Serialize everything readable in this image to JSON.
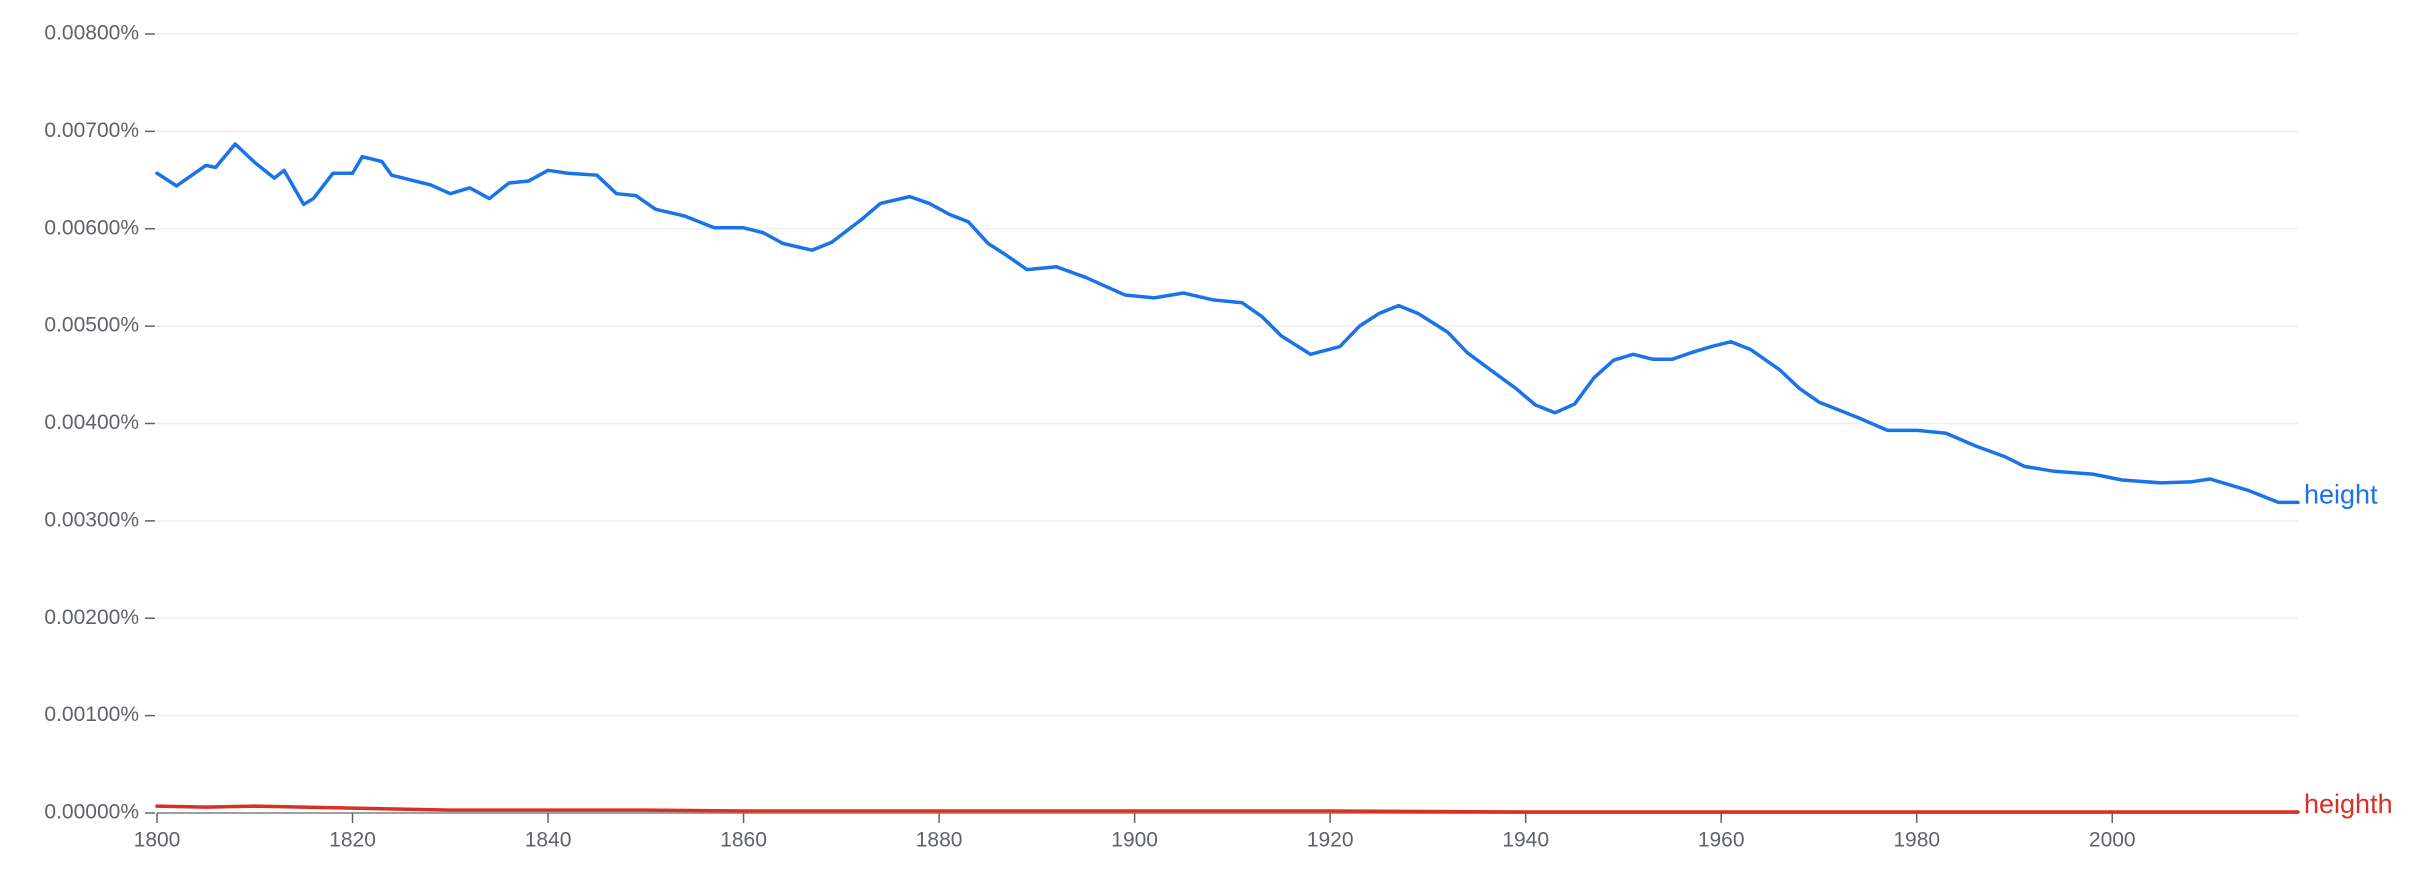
{
  "chart_data": {
    "type": "line",
    "xlim": [
      1800,
      2019
    ],
    "xticks": [
      1800,
      1820,
      1840,
      1860,
      1880,
      1900,
      1920,
      1940,
      1960,
      1980,
      2000
    ],
    "ylim": [
      0,
      0.008
    ],
    "yticks": [
      {
        "value": 0,
        "label": "0.00000%"
      },
      {
        "value": 0.001,
        "label": "0.00100%"
      },
      {
        "value": 0.002,
        "label": "0.00200%"
      },
      {
        "value": 0.003,
        "label": "0.00300%"
      },
      {
        "value": 0.004,
        "label": "0.00400%"
      },
      {
        "value": 0.005,
        "label": "0.00500%"
      },
      {
        "value": 0.006,
        "label": "0.00600%"
      },
      {
        "value": 0.007,
        "label": "0.00700%"
      },
      {
        "value": 0.008,
        "label": "0.00800%"
      }
    ],
    "grid": true,
    "series": [
      {
        "name": "height",
        "color": "#1a73e8",
        "x": [
          1800,
          1802,
          1805,
          1806,
          1808,
          1810,
          1812,
          1813,
          1815,
          1816,
          1818,
          1820,
          1821,
          1823,
          1824,
          1828,
          1830,
          1832,
          1834,
          1836,
          1838,
          1840,
          1842,
          1845,
          1847,
          1849,
          1851,
          1854,
          1857,
          1860,
          1862,
          1864,
          1867,
          1869,
          1872,
          1874,
          1877,
          1879,
          1881,
          1883,
          1885,
          1887,
          1889,
          1892,
          1895,
          1899,
          1902,
          1905,
          1908,
          1911,
          1913,
          1915,
          1918,
          1921,
          1923,
          1925,
          1927,
          1929,
          1932,
          1934,
          1936,
          1939,
          1941,
          1943,
          1945,
          1947,
          1949,
          1951,
          1953,
          1955,
          1957,
          1959,
          1961,
          1963,
          1966,
          1968,
          1970,
          1974,
          1977,
          1980,
          1983,
          1986,
          1989,
          1991,
          1994,
          1998,
          2001,
          2005,
          2008,
          2010,
          2012,
          2014,
          2017,
          2019
        ],
        "values": [
          0.00657,
          0.00644,
          0.00665,
          0.00663,
          0.00687,
          0.00668,
          0.00652,
          0.0066,
          0.00625,
          0.00631,
          0.00657,
          0.00657,
          0.00674,
          0.00669,
          0.00655,
          0.00645,
          0.00636,
          0.00642,
          0.00631,
          0.00647,
          0.00649,
          0.0066,
          0.00657,
          0.00655,
          0.00636,
          0.00634,
          0.0062,
          0.00613,
          0.00601,
          0.00601,
          0.00596,
          0.00585,
          0.00578,
          0.00586,
          0.00609,
          0.00626,
          0.00633,
          0.00626,
          0.00615,
          0.00607,
          0.00585,
          0.00572,
          0.00558,
          0.00561,
          0.0055,
          0.00532,
          0.00529,
          0.00534,
          0.00527,
          0.00524,
          0.0051,
          0.0049,
          0.00471,
          0.00479,
          0.005,
          0.00513,
          0.00521,
          0.00513,
          0.00494,
          0.00473,
          0.00458,
          0.00436,
          0.00419,
          0.00411,
          0.0042,
          0.00447,
          0.00465,
          0.00471,
          0.00466,
          0.00466,
          0.00473,
          0.00479,
          0.00484,
          0.00476,
          0.00455,
          0.00436,
          0.00422,
          0.00406,
          0.00393,
          0.00393,
          0.0039,
          0.00377,
          0.00366,
          0.00356,
          0.00351,
          0.00348,
          0.00342,
          0.00339,
          0.0034,
          0.00343,
          0.00337,
          0.00331,
          0.00319,
          0.00319
        ]
      },
      {
        "name": "heighth",
        "color": "#d93025",
        "x": [
          1800,
          1805,
          1810,
          1815,
          1820,
          1825,
          1830,
          1840,
          1850,
          1860,
          1880,
          1900,
          1920,
          1940,
          1960,
          1980,
          2000,
          2019
        ],
        "values": [
          7e-05,
          6e-05,
          7e-05,
          6e-05,
          5e-05,
          4e-05,
          3e-05,
          3e-05,
          3e-05,
          2e-05,
          2e-05,
          2e-05,
          2e-05,
          1e-05,
          1e-05,
          1e-05,
          1e-05,
          1e-05
        ]
      }
    ]
  }
}
